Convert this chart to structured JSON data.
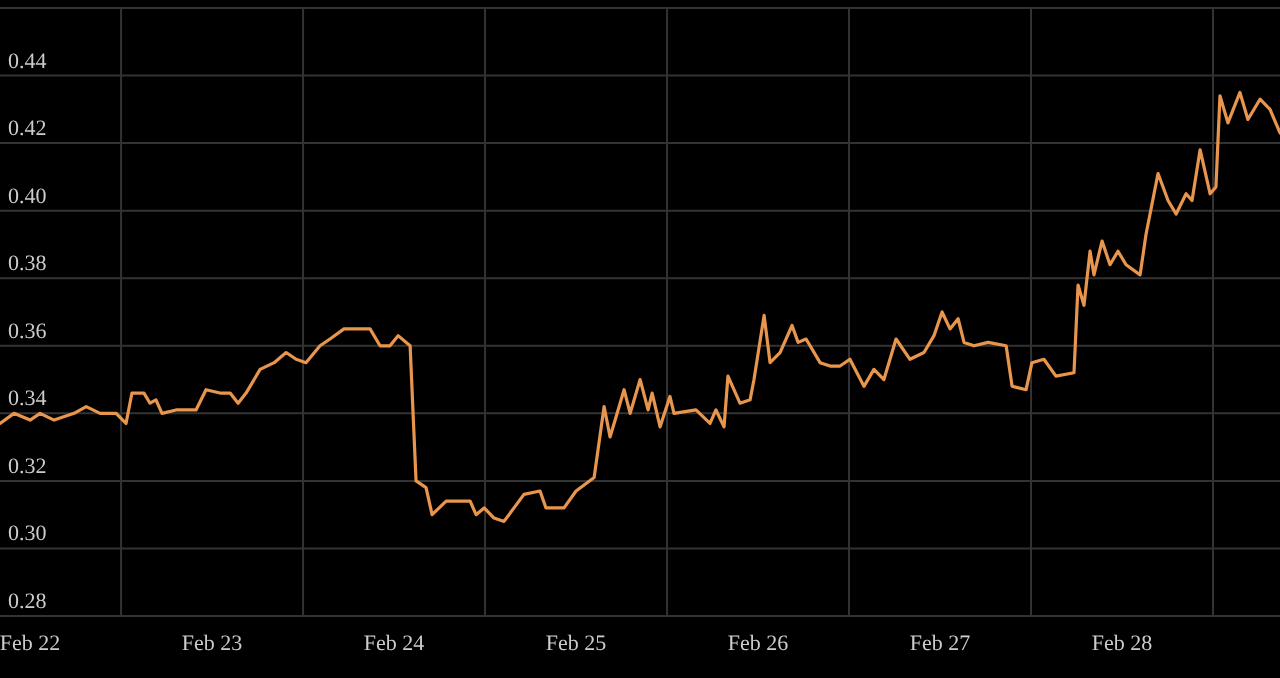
{
  "chart_data": {
    "type": "line",
    "x": [
      "--02-21T20:02",
      "--02-21T21:53",
      "--02-22T00:00",
      "--02-22T01:19",
      "--02-22T03:10",
      "--02-22T05:48",
      "--02-22T07:24",
      "--02-22T09:14",
      "--02-22T11:21",
      "--02-22T12:39",
      "--02-22T13:26",
      "--02-22T15:01",
      "--02-22T15:49",
      "--02-22T16:36",
      "--02-22T17:24",
      "--02-22T19:15",
      "--02-22T21:53",
      "--02-22T23:12",
      "--02-23T01:03",
      "--02-23T02:23",
      "--02-23T03:26",
      "--02-23T04:29",
      "--02-23T06:20",
      "--02-23T08:11",
      "--02-23T09:46",
      "--02-23T11:05",
      "--02-23T12:23",
      "--02-23T14:14",
      "--02-23T15:33",
      "--02-23T17:24",
      "--02-23T18:43",
      "--02-23T20:50",
      "--02-23T22:09",
      "--02-23T23:28",
      "--02-24T00:32",
      "--02-24T02:07",
      "--02-24T02:54",
      "--02-24T04:13",
      "--02-24T05:01",
      "--02-24T06:52",
      "--02-24T10:02",
      "--02-24T10:49",
      "--02-24T11:53",
      "--02-24T13:11",
      "--02-24T14:30",
      "--02-24T15:49",
      "--02-24T17:08",
      "--02-24T19:15",
      "--02-24T20:02",
      "--02-24T22:25",
      "--02-25T00:00",
      "--02-25T02:23",
      "--02-25T03:42",
      "--02-25T04:29",
      "--02-25T05:17",
      "--02-25T06:20",
      "--02-25T07:08",
      "--02-25T08:27",
      "--02-25T09:30",
      "--02-25T10:02",
      "--02-25T11:05",
      "--02-25T12:23",
      "--02-25T12:55",
      "--02-25T15:49",
      "--02-25T17:40",
      "--02-25T18:27",
      "--02-25T19:31",
      "--02-25T20:02",
      "--02-25T21:37",
      "--02-25T22:57",
      "--02-25T23:28",
      "--02-26T00:48",
      "--02-26T01:35",
      "--02-26T02:54",
      "--02-26T04:29",
      "--02-26T05:17",
      "--02-26T06:20",
      "--02-26T08:11",
      "--02-26T09:30",
      "--02-26T10:49",
      "--02-26T12:07",
      "--02-26T13:58",
      "--02-26T15:17",
      "--02-26T16:36",
      "--02-26T18:12",
      "--02-26T20:02",
      "--02-26T21:53",
      "--02-26T23:12",
      "--02-27T00:16",
      "--02-27T01:19",
      "--02-27T02:23",
      "--02-27T03:10",
      "--02-27T04:29",
      "--02-27T06:20",
      "--02-27T08:43",
      "--02-27T09:30",
      "--02-27T11:21",
      "--02-27T12:07",
      "--02-27T13:42",
      "--02-27T15:17",
      "--02-27T17:40",
      "--02-27T18:12",
      "--02-27T18:59",
      "--02-27T19:47",
      "--02-27T20:18",
      "--02-27T21:22",
      "--02-27T22:25",
      "--02-27T23:28",
      "--02-28T00:32",
      "--02-28T02:23",
      "--02-28T03:10",
      "--02-28T04:45",
      "--02-28T06:04",
      "--02-28T07:08",
      "--02-28T08:27",
      "--02-28T09:14",
      "--02-28T10:18",
      "--02-28T11:37",
      "--02-28T12:23",
      "--02-28T12:55",
      "--02-28T13:58",
      "--02-28T15:33",
      "--02-28T16:36",
      "--02-28T18:12",
      "--02-28T19:31",
      "--02-28T20:50"
    ],
    "series": [
      {
        "color": "#e8954d",
        "values": [
          0.337,
          0.34,
          0.338,
          0.34,
          0.338,
          0.34,
          0.342,
          0.34,
          0.34,
          0.337,
          0.346,
          0.346,
          0.343,
          0.344,
          0.34,
          0.341,
          0.341,
          0.347,
          0.346,
          0.346,
          0.343,
          0.346,
          0.353,
          0.355,
          0.358,
          0.356,
          0.355,
          0.36,
          0.362,
          0.365,
          0.365,
          0.365,
          0.36,
          0.36,
          0.363,
          0.36,
          0.32,
          0.318,
          0.31,
          0.314,
          0.314,
          0.31,
          0.312,
          0.309,
          0.308,
          0.312,
          0.316,
          0.317,
          0.312,
          0.312,
          0.317,
          0.321,
          0.342,
          0.333,
          0.339,
          0.347,
          0.34,
          0.35,
          0.341,
          0.346,
          0.336,
          0.345,
          0.34,
          0.341,
          0.337,
          0.341,
          0.336,
          0.351,
          0.343,
          0.344,
          0.35,
          0.369,
          0.355,
          0.358,
          0.366,
          0.361,
          0.362,
          0.355,
          0.354,
          0.354,
          0.356,
          0.348,
          0.353,
          0.35,
          0.362,
          0.356,
          0.358,
          0.363,
          0.37,
          0.365,
          0.368,
          0.361,
          0.36,
          0.361,
          0.36,
          0.348,
          0.347,
          0.355,
          0.356,
          0.351,
          0.352,
          0.378,
          0.372,
          0.388,
          0.381,
          0.391,
          0.384,
          0.388,
          0.384,
          0.381,
          0.393,
          0.411,
          0.403,
          0.399,
          0.405,
          0.403,
          0.418,
          0.405,
          0.407,
          0.434,
          0.426,
          0.435,
          0.427,
          0.433,
          0.43,
          0.423
        ]
      }
    ],
    "xlim": [
      "--02-21T20:02",
      "--02-28T20:50"
    ],
    "xticks": [
      {
        "value": "--02-22",
        "label": "Feb 22"
      },
      {
        "value": "--02-22T12:00",
        "label": null
      },
      {
        "value": "--02-23",
        "label": "Feb 23"
      },
      {
        "value": "--02-23T12:00",
        "label": null
      },
      {
        "value": "--02-24",
        "label": "Feb 24"
      },
      {
        "value": "--02-24T12:00",
        "label": null
      },
      {
        "value": "--02-25",
        "label": "Feb 25"
      },
      {
        "value": "--02-25T12:00",
        "label": null
      },
      {
        "value": "--02-26",
        "label": "Feb 26"
      },
      {
        "value": "--02-26T12:00",
        "label": null
      },
      {
        "value": "--02-27",
        "label": "Feb 27"
      },
      {
        "value": "--02-27T12:00",
        "label": null
      },
      {
        "value": "--02-28",
        "label": "Feb 28"
      },
      {
        "value": "--02-28T12:00",
        "label": null
      }
    ],
    "ylim": [
      0.28,
      0.46
    ],
    "yticks": [
      {
        "value": 0.28,
        "label": "0.28"
      },
      {
        "value": 0.3,
        "label": "0.30"
      },
      {
        "value": 0.32,
        "label": "0.32"
      },
      {
        "value": 0.34,
        "label": "0.34"
      },
      {
        "value": 0.36,
        "label": "0.36"
      },
      {
        "value": 0.38,
        "label": "0.38"
      },
      {
        "value": 0.4,
        "label": "0.40"
      },
      {
        "value": 0.42,
        "label": "0.42"
      },
      {
        "value": 0.44,
        "label": "0.44"
      }
    ],
    "grid": true,
    "line_style": "solid",
    "marker": "none"
  }
}
